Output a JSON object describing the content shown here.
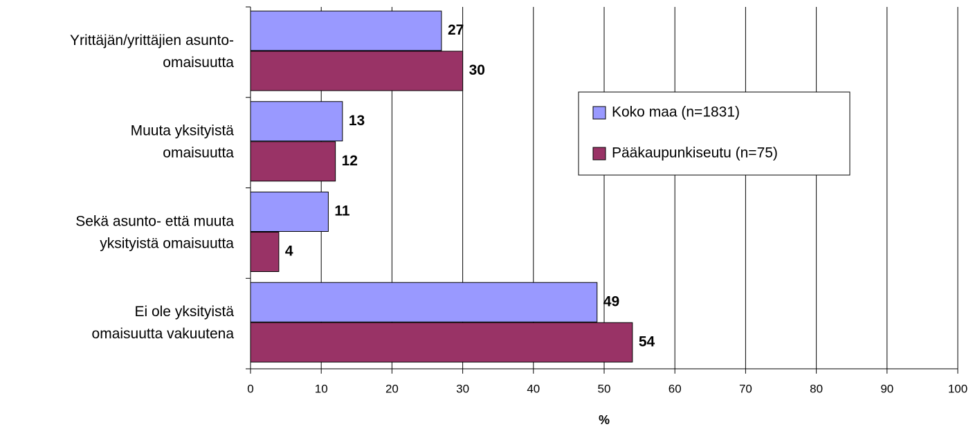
{
  "chart_data": {
    "type": "bar",
    "orientation": "horizontal",
    "categories": [
      [
        "Yrittäjän/yrittäjien asunto-",
        "omaisuutta"
      ],
      [
        "Muuta yksityistä",
        "omaisuutta"
      ],
      [
        "Sekä asunto- että muuta",
        "yksityistä omaisuutta"
      ],
      [
        "Ei ole yksityistä",
        "omaisuutta vakuutena"
      ]
    ],
    "series": [
      {
        "name": "Koko maa (n=1831)",
        "color": "#9999ff",
        "values": [
          27,
          13,
          11,
          49
        ]
      },
      {
        "name": "Pääkaupunkiseutu (n=75)",
        "color": "#993366",
        "values": [
          30,
          12,
          4,
          54
        ]
      }
    ],
    "x_label": "%",
    "xlim": [
      0,
      100
    ],
    "xticks": [
      0,
      10,
      20,
      30,
      40,
      50,
      60,
      70,
      80,
      90,
      100
    ],
    "grid": true,
    "legend_position": "right"
  }
}
